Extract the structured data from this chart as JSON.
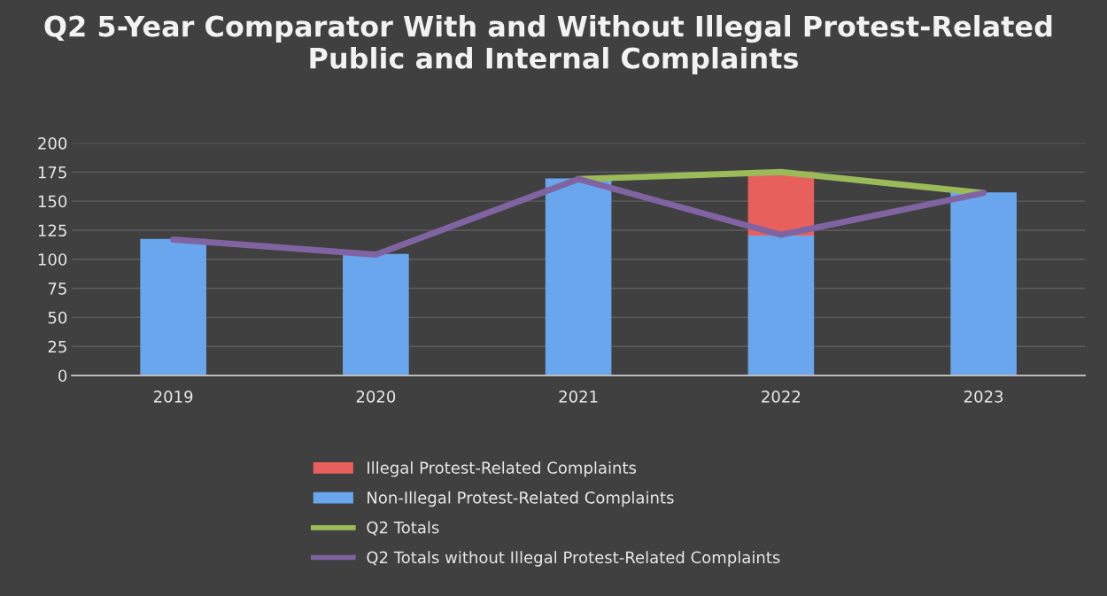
{
  "chart_data": {
    "type": "bar",
    "stacked": true,
    "title": "Q2 5-Year Comparator With and Without Illegal Protest-Related  Public and Internal Complaints",
    "categories": [
      "2019",
      "2020",
      "2021",
      "2022",
      "2023"
    ],
    "series": [
      {
        "name": "Non-Illegal Protest-Related Complaints",
        "color": "#6aa6ee",
        "values": [
          117,
          104,
          169,
          121,
          157
        ]
      },
      {
        "name": "Illegal Protest-Related Complaints",
        "color": "#e8605c",
        "values": [
          null,
          null,
          null,
          54,
          null
        ]
      },
      {
        "name": "Q2 Totals",
        "type": "line",
        "color": "#9bbb59",
        "values": [
          null,
          null,
          169,
          175,
          157
        ]
      },
      {
        "name": "Q2 Totals without Illegal Protest-Related Complaints",
        "type": "line",
        "color": "#8064a2",
        "values": [
          117,
          104,
          169,
          121,
          157
        ]
      }
    ],
    "ylim": [
      0,
      200
    ],
    "yticks": [
      0,
      25,
      50,
      75,
      100,
      125,
      150,
      175,
      200
    ],
    "grid": "y",
    "legend": "bottom"
  }
}
